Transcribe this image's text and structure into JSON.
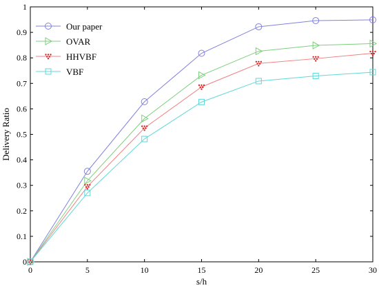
{
  "chart_data": {
    "type": "line",
    "title": "",
    "xlabel": "s/h",
    "ylabel": "Delivery Ratio",
    "xlim": [
      0,
      30
    ],
    "ylim": [
      0,
      1
    ],
    "x_ticks": [
      0,
      5,
      10,
      15,
      20,
      25,
      30
    ],
    "y_ticks": [
      0,
      0.1,
      0.2,
      0.3,
      0.4,
      0.5,
      0.6,
      0.7,
      0.8,
      0.9,
      1
    ],
    "grid": false,
    "legend_position": "top-left",
    "x": [
      0,
      5,
      10,
      15,
      20,
      25,
      30
    ],
    "series": [
      {
        "name": "Our paper",
        "marker": "circle",
        "color": "#8080e0",
        "values": [
          0,
          0.355,
          0.628,
          0.818,
          0.922,
          0.946,
          0.949
        ]
      },
      {
        "name": "OVAR",
        "marker": "triangle-right",
        "color": "#7ccf7c",
        "values": [
          0,
          0.318,
          0.562,
          0.732,
          0.826,
          0.849,
          0.856
        ]
      },
      {
        "name": "HHVBF",
        "marker": "dotted-triangle",
        "color": "#f08080",
        "values": [
          0,
          0.295,
          0.525,
          0.686,
          0.778,
          0.797,
          0.818
        ]
      },
      {
        "name": "VBF",
        "marker": "square",
        "color": "#60d8d8",
        "values": [
          0,
          0.27,
          0.482,
          0.627,
          0.709,
          0.729,
          0.744
        ]
      }
    ]
  }
}
